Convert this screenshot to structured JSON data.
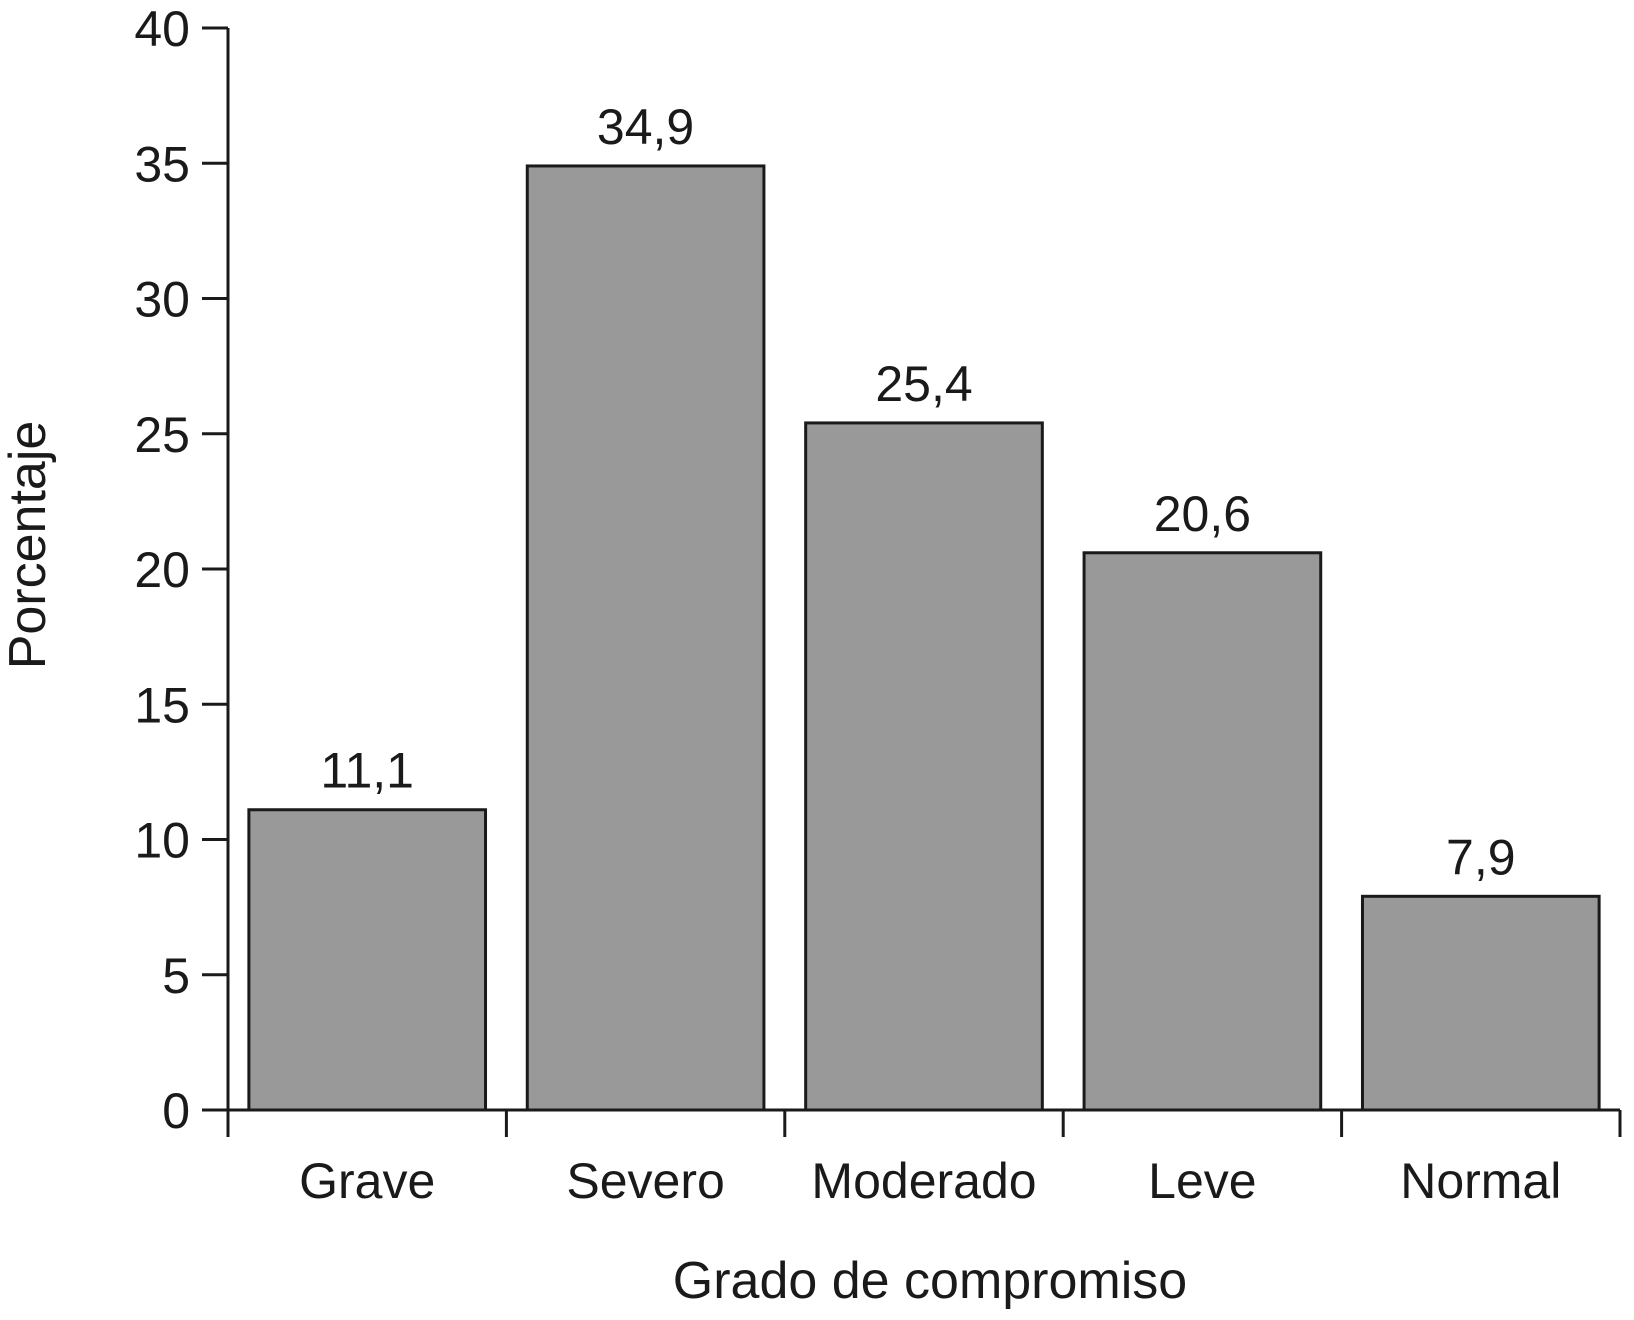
{
  "chart_data": {
    "type": "bar",
    "categories": [
      "Grave",
      "Severo",
      "Moderado",
      "Leve",
      "Normal"
    ],
    "values": [
      11.1,
      34.9,
      25.4,
      20.6,
      7.9
    ],
    "value_labels": [
      "11,1",
      "34,9",
      "25,4",
      "20,6",
      "7,9"
    ],
    "title": "",
    "xlabel": "Grado de compromiso",
    "ylabel": "Porcentaje",
    "ylim": [
      0,
      40
    ],
    "yticks": [
      0,
      5,
      10,
      15,
      20,
      25,
      30,
      35,
      40
    ],
    "grid": false,
    "legend": "none",
    "bar_color": "#999999",
    "edge_color": "#1a1a1a"
  }
}
